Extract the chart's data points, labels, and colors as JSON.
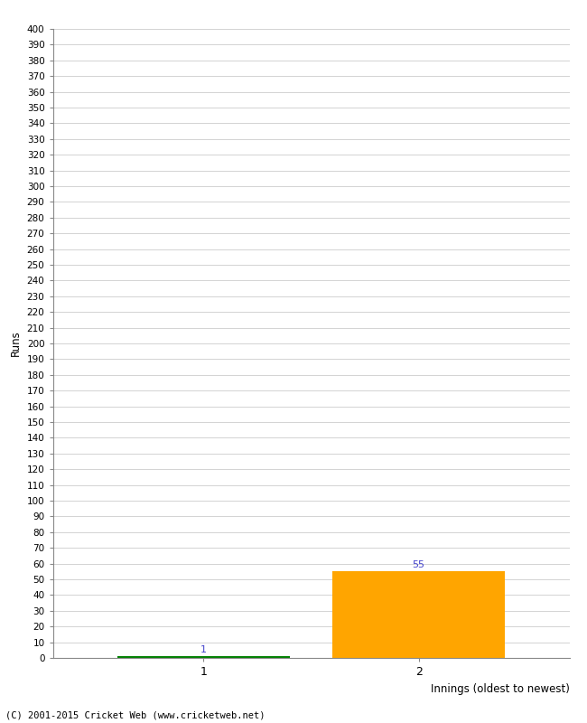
{
  "xlabel": "Innings (oldest to newest)",
  "ylabel": "Runs",
  "categories": [
    "1",
    "2"
  ],
  "values": [
    1,
    55
  ],
  "bar_colors": [
    "#008000",
    "#ffa500"
  ],
  "bar_labels": [
    "1",
    "55"
  ],
  "label_colors": [
    "#4444cc",
    "#4444cc"
  ],
  "ylim": [
    0,
    400
  ],
  "background_color": "#ffffff",
  "grid_color": "#cccccc",
  "footer": "(C) 2001-2015 Cricket Web (www.cricketweb.net)"
}
